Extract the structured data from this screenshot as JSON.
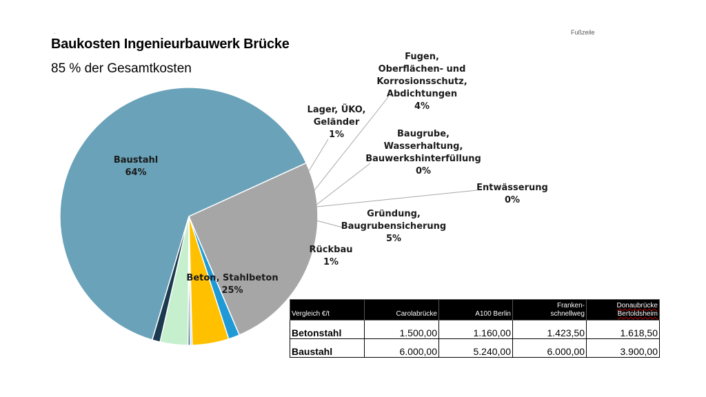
{
  "slide": {
    "title": "Baukosten Ingenieurbauwerk Brücke",
    "subtitle": "85 % der Gesamtkosten",
    "corner_mark": "Fußzeile"
  },
  "chart_data": {
    "type": "pie",
    "title": "Baukosten Ingenieurbauwerk Brücke",
    "subtitle": "85 % der Gesamtkosten",
    "slices": [
      {
        "label": "Baustahl",
        "value": 63.6,
        "display": "64%",
        "color": "#69a2b9"
      },
      {
        "label": "Lager, ÜKO, Geländer",
        "value": 1.0,
        "display": "1%",
        "color": "#1b3a4f"
      },
      {
        "label": "Fugen, Oberflächen- und Korrosionsschutz, Abdichtungen",
        "value": 3.5,
        "display": "4%",
        "color": "#c6efce"
      },
      {
        "label": "Baugrube, Wasserhaltung, Bauwerkshinterfüllung",
        "value": 0.25,
        "display": "0%",
        "color": "#2b5570"
      },
      {
        "label": "Entwässerung",
        "value": 0.25,
        "display": "0%",
        "color": "#b7d7e8"
      },
      {
        "label": "Gründung, Baugrubensicherung",
        "value": 4.6,
        "display": "5%",
        "color": "#ffc000"
      },
      {
        "label": "Rückbau",
        "value": 1.4,
        "display": "1%",
        "color": "#1f9ad6"
      },
      {
        "label": "Beton, Stahlbeton",
        "value": 25.4,
        "display": "25%",
        "color": "#a6a6a6"
      }
    ]
  },
  "table": {
    "headers": [
      "Vergleich €/t",
      "Carolabrücke",
      "A100 Berlin",
      "Franken-\nschnellweg",
      "Donaubrücke Bertoldsheim"
    ],
    "rows": [
      {
        "label": "Betonstahl",
        "values": [
          "1.500,00",
          "1.160,00",
          "1.423,50",
          "1.618,50"
        ]
      },
      {
        "label": "Baustahl",
        "values": [
          "6.000,00",
          "5.240,00",
          "6.000,00",
          "3.900,00"
        ]
      }
    ]
  }
}
